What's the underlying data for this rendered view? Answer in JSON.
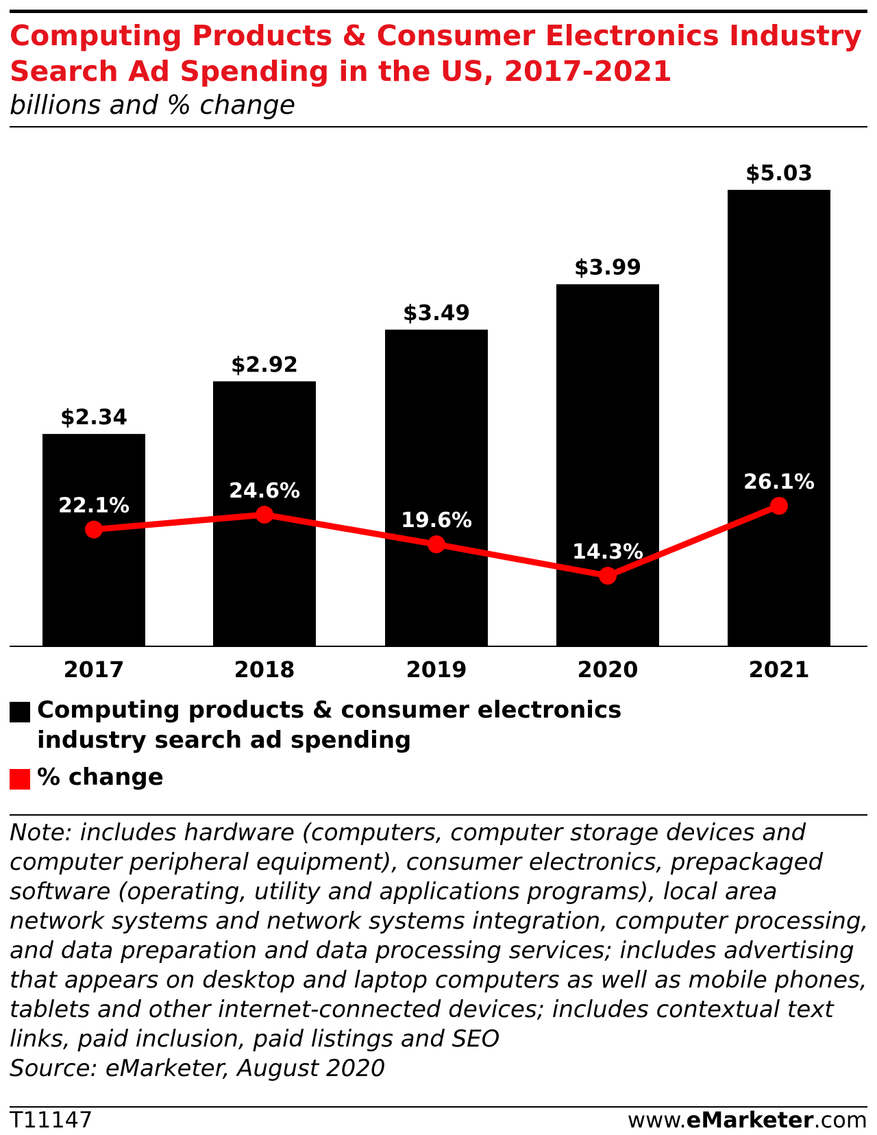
{
  "header": {
    "title": "Computing Products & Consumer Electronics Industry Search Ad Spending in the US, 2017-2021",
    "subtitle": "billions and % change"
  },
  "chart_data": {
    "type": "bar",
    "categories": [
      "2017",
      "2018",
      "2019",
      "2020",
      "2021"
    ],
    "series": [
      {
        "name": "Computing products & consumer electronics industry search ad spending",
        "type": "bar",
        "values": [
          2.34,
          2.92,
          3.49,
          3.99,
          5.03
        ],
        "labels": [
          "$2.34",
          "$2.92",
          "$3.49",
          "$3.99",
          "$5.03"
        ],
        "color": "#000000"
      },
      {
        "name": "% change",
        "type": "line",
        "values": [
          22.1,
          24.6,
          19.6,
          14.3,
          26.1
        ],
        "labels": [
          "22.1%",
          "24.6%",
          "19.6%",
          "14.3%",
          "26.1%"
        ],
        "color": "#ff0000"
      }
    ],
    "grid": false,
    "legend_position": "bottom-left"
  },
  "legend": [
    {
      "label": "Computing products & consumer electronics industry search ad spending",
      "color": "#000000"
    },
    {
      "label": "% change",
      "color": "#ff0000"
    }
  ],
  "note": "Note: includes hardware (computers, computer storage devices and computer peripheral equipment), consumer electronics, prepackaged software (operating, utility and applications programs), local area network systems and network systems integration, computer processing, and data preparation and data processing services; includes advertising that appears on desktop and laptop computers as well as mobile phones, tablets and other internet-connected devices; includes contextual text links, paid inclusion, paid listings and SEO",
  "source": "Source: eMarketer, August 2020",
  "footer": {
    "chart_id": "T11147",
    "site_prefix": "www.",
    "site_brand": "eMarketer",
    "site_suffix": ".com"
  },
  "colors": {
    "title": "#e5131c",
    "bar": "#000000",
    "line": "#ff0000",
    "bar_label_text": "#ffffff"
  }
}
